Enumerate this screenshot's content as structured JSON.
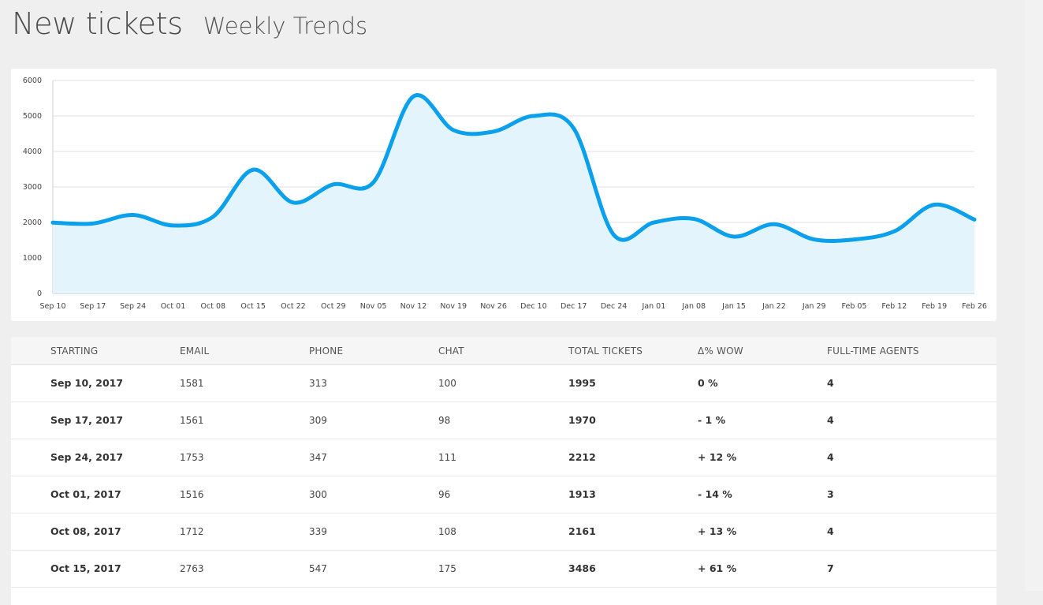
{
  "header": {
    "title": "New tickets",
    "subtitle": "Weekly Trends"
  },
  "colors": {
    "line": "#0aa0ec",
    "area": "#e3f4fc",
    "grid": "#e2e2e2",
    "background": "#efefef"
  },
  "chart_data": {
    "type": "area",
    "title": "",
    "xlabel": "",
    "ylabel": "",
    "ylim": [
      0,
      6000
    ],
    "yticks": [
      0,
      1000,
      2000,
      3000,
      4000,
      5000,
      6000
    ],
    "grid": true,
    "categories": [
      "Sep 10",
      "Sep 17",
      "Sep 24",
      "Oct 01",
      "Oct 08",
      "Oct 15",
      "Oct 22",
      "Oct 29",
      "Nov 05",
      "Nov 12",
      "Nov 19",
      "Nov 26",
      "Dec 10",
      "Dec 17",
      "Dec 24",
      "Jan 01",
      "Jan 08",
      "Jan 15",
      "Jan 22",
      "Jan 29",
      "Feb 05",
      "Feb 12",
      "Feb 19",
      "Feb 26"
    ],
    "series": [
      {
        "values": [
          1995,
          1970,
          2212,
          1913,
          2161,
          3486,
          2560,
          3070,
          3130,
          5550,
          4600,
          4560,
          5000,
          4650,
          1650,
          2000,
          2100,
          1600,
          1950,
          1520,
          1520,
          1750,
          2500,
          2080
        ]
      }
    ]
  },
  "table": {
    "headers": [
      "STARTING",
      "EMAIL",
      "PHONE",
      "CHAT",
      "TOTAL TICKETS",
      "Δ% WOW",
      "FULL-TIME AGENTS"
    ],
    "rows": [
      [
        "Sep 10, 2017",
        "1581",
        "313",
        "100",
        "1995",
        "0 %",
        "4"
      ],
      [
        "Sep 17, 2017",
        "1561",
        "309",
        "98",
        "1970",
        "- 1 %",
        "4"
      ],
      [
        "Sep 24, 2017",
        "1753",
        "347",
        "111",
        "2212",
        "+ 12 %",
        "4"
      ],
      [
        "Oct 01, 2017",
        "1516",
        "300",
        "96",
        "1913",
        "- 14 %",
        "3"
      ],
      [
        "Oct 08, 2017",
        "1712",
        "339",
        "108",
        "2161",
        "+ 13 %",
        "4"
      ],
      [
        "Oct 15, 2017",
        "2763",
        "547",
        "175",
        "3486",
        "+ 61 %",
        "7"
      ]
    ]
  }
}
